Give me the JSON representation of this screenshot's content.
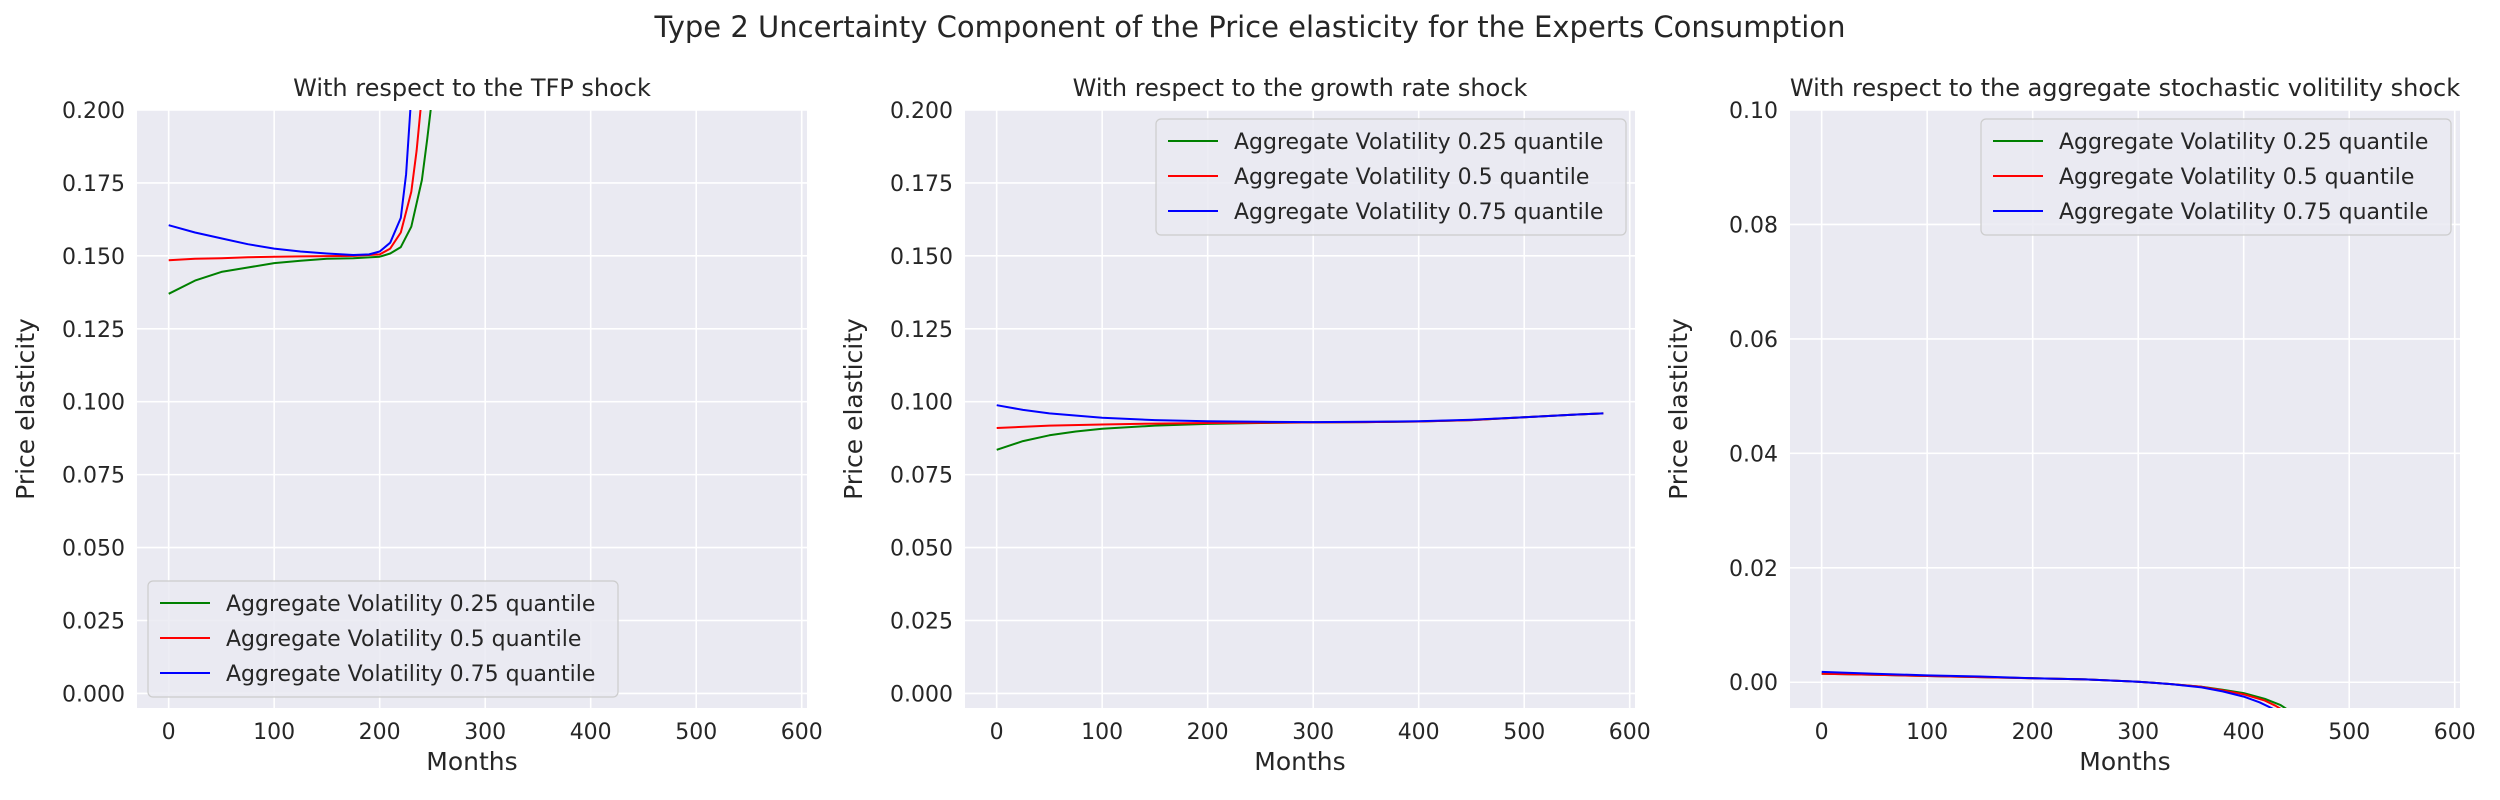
{
  "figure": {
    "suptitle": "Type 2 Uncertainty Component of the Price elasticity for the Experts Consumption"
  },
  "colors": {
    "background": "#eaeaf2",
    "grid": "#ffffff",
    "q25": "#008000",
    "q50": "#ff0000",
    "q75": "#0000ff"
  },
  "chart_data": [
    {
      "type": "line",
      "title": "With respect to the TFP shock",
      "xlabel": "Months",
      "ylabel": "Price elasticity",
      "xlim": [
        -30,
        605
      ],
      "ylim": [
        -0.005,
        0.2
      ],
      "xticks": [
        0,
        100,
        200,
        300,
        400,
        500,
        600
      ],
      "yticks": [
        0.0,
        0.025,
        0.05,
        0.075,
        0.1,
        0.125,
        0.15,
        0.175,
        0.2
      ],
      "ytick_labels": [
        "0.000",
        "0.025",
        "0.050",
        "0.075",
        "0.100",
        "0.125",
        "0.150",
        "0.175",
        "0.200"
      ],
      "xtick_labels": [
        "0",
        "100",
        "200",
        "300",
        "400",
        "500",
        "600"
      ],
      "grid": true,
      "legend": "lower-left",
      "series": [
        {
          "name": "Aggregate Volatility 0.25 quantile",
          "color": "#008000",
          "x": [
            0,
            25,
            50,
            75,
            100,
            125,
            150,
            175,
            200,
            210,
            220,
            230,
            240,
            245,
            250
          ],
          "y": [
            0.137,
            0.1415,
            0.1445,
            0.146,
            0.1475,
            0.1483,
            0.149,
            0.1492,
            0.1497,
            0.1508,
            0.153,
            0.16,
            0.176,
            0.19,
            0.205
          ]
        },
        {
          "name": "Aggregate Volatility 0.5 quantile",
          "color": "#ff0000",
          "x": [
            0,
            25,
            50,
            75,
            100,
            125,
            150,
            175,
            200,
            210,
            220,
            230,
            235,
            240
          ],
          "y": [
            0.1485,
            0.149,
            0.1492,
            0.1495,
            0.1497,
            0.1498,
            0.1499,
            0.15,
            0.1505,
            0.1525,
            0.158,
            0.172,
            0.186,
            0.205
          ]
        },
        {
          "name": "Aggregate Volatility 0.75 quantile",
          "color": "#0000ff",
          "x": [
            0,
            25,
            50,
            75,
            100,
            125,
            150,
            175,
            190,
            200,
            210,
            220,
            225,
            230
          ],
          "y": [
            0.1605,
            0.158,
            0.156,
            0.154,
            0.1525,
            0.1515,
            0.1508,
            0.1503,
            0.1505,
            0.1515,
            0.1545,
            0.163,
            0.178,
            0.205
          ]
        }
      ]
    },
    {
      "type": "line",
      "title": "With respect to the growth rate shock",
      "xlabel": "Months",
      "ylabel": "Price elasticity",
      "xlim": [
        -30,
        605
      ],
      "ylim": [
        -0.005,
        0.2
      ],
      "xticks": [
        0,
        100,
        200,
        300,
        400,
        500,
        600
      ],
      "yticks": [
        0.0,
        0.025,
        0.05,
        0.075,
        0.1,
        0.125,
        0.15,
        0.175,
        0.2
      ],
      "ytick_labels": [
        "0.000",
        "0.025",
        "0.050",
        "0.075",
        "0.100",
        "0.125",
        "0.150",
        "0.175",
        "0.200"
      ],
      "xtick_labels": [
        "0",
        "100",
        "200",
        "300",
        "400",
        "500",
        "600"
      ],
      "grid": true,
      "legend": "upper-right",
      "series": [
        {
          "name": "Aggregate Volatility 0.25 quantile",
          "color": "#008000",
          "x": [
            0,
            25,
            50,
            75,
            100,
            150,
            200,
            250,
            300,
            350,
            400,
            450,
            500,
            550,
            575
          ],
          "y": [
            0.0835,
            0.0865,
            0.0885,
            0.0898,
            0.0907,
            0.0918,
            0.0924,
            0.0927,
            0.0929,
            0.093,
            0.0932,
            0.0937,
            0.0947,
            0.0956,
            0.096
          ]
        },
        {
          "name": "Aggregate Volatility 0.5 quantile",
          "color": "#ff0000",
          "x": [
            0,
            50,
            100,
            150,
            200,
            250,
            300,
            350,
            400,
            450,
            500,
            550,
            575
          ],
          "y": [
            0.091,
            0.0918,
            0.0922,
            0.0925,
            0.0927,
            0.0928,
            0.0929,
            0.093,
            0.0932,
            0.0937,
            0.0947,
            0.0956,
            0.096
          ]
        },
        {
          "name": "Aggregate Volatility 0.75 quantile",
          "color": "#0000ff",
          "x": [
            0,
            25,
            50,
            100,
            150,
            200,
            250,
            300,
            350,
            400,
            450,
            500,
            550,
            575
          ],
          "y": [
            0.0988,
            0.0972,
            0.096,
            0.0945,
            0.0937,
            0.0933,
            0.0931,
            0.093,
            0.0931,
            0.0933,
            0.0938,
            0.0947,
            0.0956,
            0.096
          ]
        }
      ]
    },
    {
      "type": "line",
      "title": "With respect to the aggregate stochastic volitility shock",
      "xlabel": "Months",
      "ylabel": "Price elasticity",
      "xlim": [
        -30,
        605
      ],
      "ylim": [
        -0.0045,
        0.1
      ],
      "xticks": [
        0,
        100,
        200,
        300,
        400,
        500,
        600
      ],
      "yticks": [
        0.0,
        0.02,
        0.04,
        0.06,
        0.08,
        0.1
      ],
      "ytick_labels": [
        "0.00",
        "0.02",
        "0.04",
        "0.06",
        "0.08",
        "0.10"
      ],
      "xtick_labels": [
        "0",
        "100",
        "200",
        "300",
        "400",
        "500",
        "600"
      ],
      "grid": true,
      "legend": "upper-right",
      "series": [
        {
          "name": "Aggregate Volatility 0.25 quantile",
          "color": "#008000",
          "x": [
            0,
            50,
            100,
            150,
            200,
            250,
            300,
            330,
            360,
            380,
            400,
            420,
            435,
            445
          ],
          "y": [
            0.0015,
            0.0013,
            0.0011,
            0.0009,
            0.0007,
            0.0005,
            0.0001,
            -0.0003,
            -0.0008,
            -0.0013,
            -0.0019,
            -0.0029,
            -0.004,
            -0.0052
          ]
        },
        {
          "name": "Aggregate Volatility 0.5 quantile",
          "color": "#ff0000",
          "x": [
            0,
            50,
            100,
            150,
            200,
            250,
            300,
            330,
            360,
            380,
            400,
            420,
            430,
            440
          ],
          "y": [
            0.0015,
            0.0013,
            0.0011,
            0.0009,
            0.0007,
            0.0005,
            0.0001,
            -0.0003,
            -0.0008,
            -0.0014,
            -0.0021,
            -0.0032,
            -0.0041,
            -0.0052
          ]
        },
        {
          "name": "Aggregate Volatility 0.75 quantile",
          "color": "#0000ff",
          "x": [
            0,
            50,
            100,
            150,
            200,
            250,
            300,
            330,
            360,
            380,
            400,
            415,
            425,
            435
          ],
          "y": [
            0.0018,
            0.0015,
            0.0012,
            0.001,
            0.0007,
            0.0005,
            0.0001,
            -0.0003,
            -0.0009,
            -0.0016,
            -0.0025,
            -0.0035,
            -0.0044,
            -0.0053
          ]
        }
      ]
    }
  ]
}
